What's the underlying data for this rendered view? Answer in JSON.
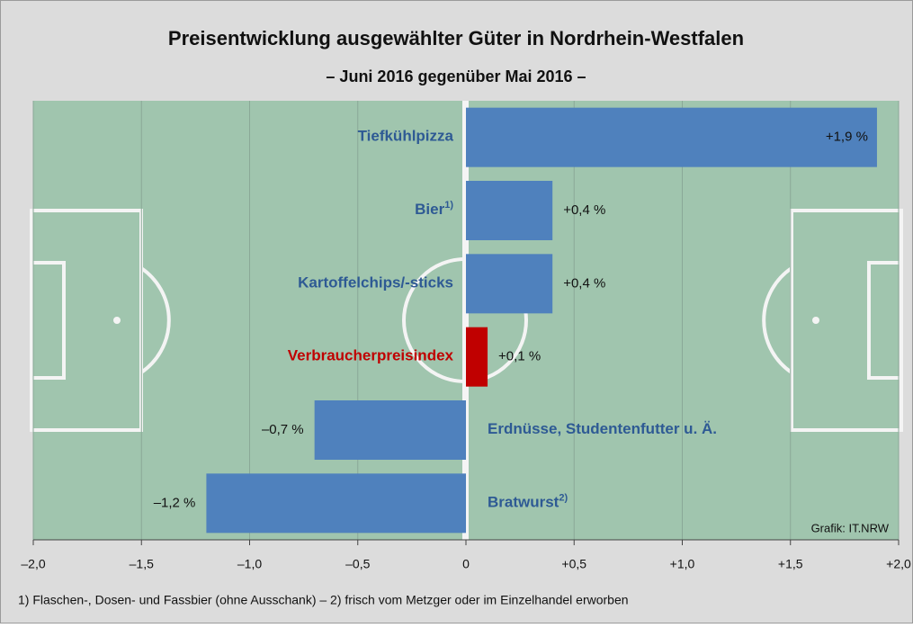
{
  "chart_data": {
    "type": "barh",
    "title": "Preisentwicklung ausgewählter Güter in Nordrhein-Westfalen",
    "subtitle": "– Juni 2016 gegenüber Mai 2016 –",
    "categories": [
      "Tiefkühlpizza",
      "Bier",
      "Kartoffelchips/-sticks",
      "Verbraucherpreisindex",
      "Erdnüsse, Studentenfutter u. Ä.",
      "Bratwurst"
    ],
    "category_notes": [
      null,
      "1)",
      null,
      null,
      null,
      "2)"
    ],
    "values": [
      1.9,
      0.4,
      0.4,
      0.1,
      -0.7,
      -1.2
    ],
    "value_labels": [
      "+1,9 %",
      "+0,4 %",
      "+0,4 %",
      "+0,1 %",
      "–0,7 %",
      "–1,2 %"
    ],
    "colors": [
      "#4f81bd",
      "#4f81bd",
      "#4f81bd",
      "#c00000",
      "#4f81bd",
      "#4f81bd"
    ],
    "label_colors": [
      "#2e5a94",
      "#2e5a94",
      "#2e5a94",
      "#c00000",
      "#2e5a94",
      "#2e5a94"
    ],
    "xlim": [
      -2,
      2
    ],
    "xticks": [
      {
        "value": -2,
        "label": "–2,0"
      },
      {
        "value": -1.5,
        "label": "–1,5"
      },
      {
        "value": -1,
        "label": "–1,0"
      },
      {
        "value": -0.5,
        "label": "–0,5"
      },
      0,
      {
        "value": 0.5,
        "label": "+0,5"
      },
      {
        "value": 1,
        "label": "+1,0"
      },
      {
        "value": 1.5,
        "label": "+1,5"
      },
      {
        "value": 2,
        "label": "+2,0"
      }
    ],
    "grid": true,
    "source": "Grafik: IT.NRW",
    "footnote": "1) Flaschen-, Dosen- und Fassbier (ohne Ausschank) – 2) frisch vom Metzger oder im Einzelhandel erworben"
  }
}
